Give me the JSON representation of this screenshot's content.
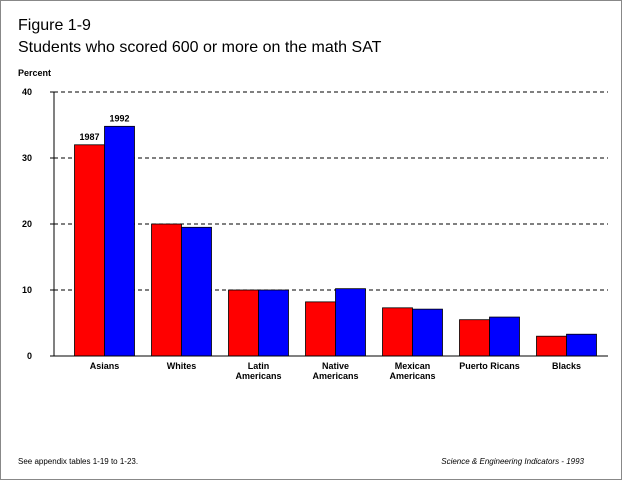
{
  "chart_data": {
    "type": "bar",
    "title": "Figure 1-9",
    "subtitle": "Students who scored 600 or more on the math SAT",
    "y_label": "Percent",
    "categories": [
      "Asians",
      "Whites",
      "Latin Americans",
      "Native Americans",
      "Mexican Americans",
      "Puerto Ricans",
      "Blacks"
    ],
    "series": [
      {
        "name": "1987",
        "color": "#ff0000",
        "values": [
          32.0,
          20.0,
          10.0,
          8.2,
          7.3,
          5.5,
          3.0
        ]
      },
      {
        "name": "1992",
        "color": "#0000ff",
        "values": [
          34.8,
          19.5,
          10.0,
          10.2,
          7.1,
          5.9,
          3.3
        ]
      }
    ],
    "ylim": [
      0,
      40
    ],
    "yticks": [
      0,
      10,
      20,
      30,
      40
    ],
    "grid": true,
    "source_note": "See appendix tables 1-19 to 1-23.",
    "credit": "Science & Engineering Indicators - 1993"
  }
}
